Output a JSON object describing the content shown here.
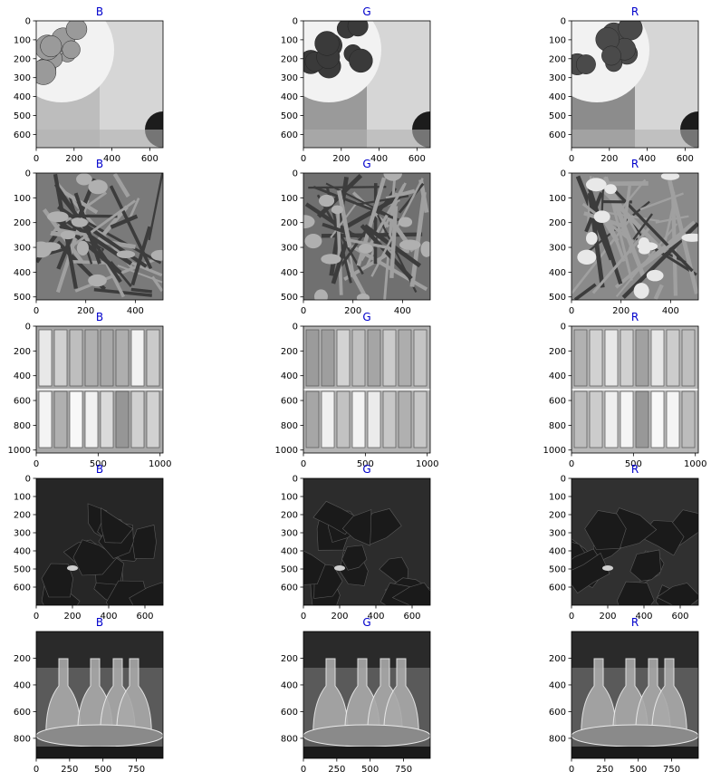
{
  "figure": {
    "title_color": "#0000cc",
    "axis_color": "#000000",
    "background": "#ffffff"
  },
  "chart_data": [
    {
      "type": "image",
      "title": "B",
      "x_ticks": [
        0,
        200,
        400,
        600
      ],
      "y_ticks": [
        0,
        100,
        200,
        300,
        400,
        500,
        600
      ],
      "xlim": [
        0,
        670
      ],
      "ylim": [
        670,
        0
      ],
      "shade": "#bdbdbd",
      "scene": "strawberries-blue"
    },
    {
      "type": "image",
      "title": "G",
      "x_ticks": [
        0,
        200,
        400,
        600
      ],
      "y_ticks": [
        0,
        100,
        200,
        300,
        400,
        500,
        600
      ],
      "xlim": [
        0,
        670
      ],
      "ylim": [
        670,
        0
      ],
      "shade": "#9a9a9a",
      "scene": "strawberries-green"
    },
    {
      "type": "image",
      "title": "R",
      "x_ticks": [
        0,
        200,
        400,
        600
      ],
      "y_ticks": [
        0,
        100,
        200,
        300,
        400,
        500,
        600
      ],
      "xlim": [
        0,
        670
      ],
      "ylim": [
        670,
        0
      ],
      "shade": "#8c8c8c",
      "scene": "strawberries-red"
    },
    {
      "type": "image",
      "title": "B",
      "x_ticks": [
        0,
        200,
        400
      ],
      "y_ticks": [
        0,
        100,
        200,
        300,
        400,
        500
      ],
      "xlim": [
        0,
        512
      ],
      "ylim": [
        512,
        0
      ],
      "shade": "#7a7a7a",
      "scene": "flowers-blue"
    },
    {
      "type": "image",
      "title": "G",
      "x_ticks": [
        0,
        200,
        400
      ],
      "y_ticks": [
        0,
        100,
        200,
        300,
        400,
        500
      ],
      "xlim": [
        0,
        512
      ],
      "ylim": [
        512,
        0
      ],
      "shade": "#707070",
      "scene": "flowers-green"
    },
    {
      "type": "image",
      "title": "R",
      "x_ticks": [
        0,
        200,
        400
      ],
      "y_ticks": [
        0,
        100,
        200,
        300,
        400,
        500
      ],
      "xlim": [
        0,
        512
      ],
      "ylim": [
        512,
        0
      ],
      "shade": "#8a8a8a",
      "scene": "flowers-red"
    },
    {
      "type": "image",
      "title": "B",
      "x_ticks": [
        0,
        500,
        1000
      ],
      "y_ticks": [
        0,
        200,
        400,
        600,
        800,
        1000
      ],
      "xlim": [
        0,
        1024
      ],
      "ylim": [
        1024,
        0
      ],
      "shade": "#a8a8a8",
      "scene": "crayons-blue"
    },
    {
      "type": "image",
      "title": "G",
      "x_ticks": [
        0,
        500,
        1000
      ],
      "y_ticks": [
        0,
        200,
        400,
        600,
        800,
        1000
      ],
      "xlim": [
        0,
        1024
      ],
      "ylim": [
        1024,
        0
      ],
      "shade": "#b4b4b4",
      "scene": "crayons-green"
    },
    {
      "type": "image",
      "title": "R",
      "x_ticks": [
        0,
        500,
        1000
      ],
      "y_ticks": [
        0,
        200,
        400,
        600,
        800,
        1000
      ],
      "xlim": [
        0,
        1024
      ],
      "ylim": [
        1024,
        0
      ],
      "shade": "#b8b8b8",
      "scene": "crayons-red"
    },
    {
      "type": "image",
      "title": "B",
      "x_ticks": [
        0,
        200,
        400,
        600
      ],
      "y_ticks": [
        0,
        100,
        200,
        300,
        400,
        500,
        600
      ],
      "xlim": [
        0,
        700
      ],
      "ylim": [
        700,
        0
      ],
      "shade": "#262626",
      "scene": "rocks-blue"
    },
    {
      "type": "image",
      "title": "G",
      "x_ticks": [
        0,
        200,
        400,
        600
      ],
      "y_ticks": [
        0,
        100,
        200,
        300,
        400,
        500,
        600
      ],
      "xlim": [
        0,
        700
      ],
      "ylim": [
        700,
        0
      ],
      "shade": "#2c2c2c",
      "scene": "rocks-green"
    },
    {
      "type": "image",
      "title": "R",
      "x_ticks": [
        0,
        200,
        400,
        600
      ],
      "y_ticks": [
        0,
        100,
        200,
        300,
        400,
        500,
        600
      ],
      "xlim": [
        0,
        700
      ],
      "ylim": [
        700,
        0
      ],
      "shade": "#303030",
      "scene": "rocks-red"
    },
    {
      "type": "image",
      "title": "B",
      "x_ticks": [
        0,
        250,
        500,
        750
      ],
      "y_ticks": [
        200,
        400,
        600,
        800
      ],
      "xlim": [
        0,
        950
      ],
      "ylim": [
        950,
        0
      ],
      "shade": "#5a5a5a",
      "scene": "decanters-blue"
    },
    {
      "type": "image",
      "title": "G",
      "x_ticks": [
        0,
        250,
        500,
        750
      ],
      "y_ticks": [
        200,
        400,
        600,
        800
      ],
      "xlim": [
        0,
        950
      ],
      "ylim": [
        950,
        0
      ],
      "shade": "#5a5a5a",
      "scene": "decanters-green"
    },
    {
      "type": "image",
      "title": "R",
      "x_ticks": [
        0,
        250,
        500,
        750
      ],
      "y_ticks": [
        200,
        400,
        600,
        800
      ],
      "xlim": [
        0,
        950
      ],
      "ylim": [
        950,
        0
      ],
      "shade": "#5a5a5a",
      "scene": "decanters-red"
    }
  ]
}
